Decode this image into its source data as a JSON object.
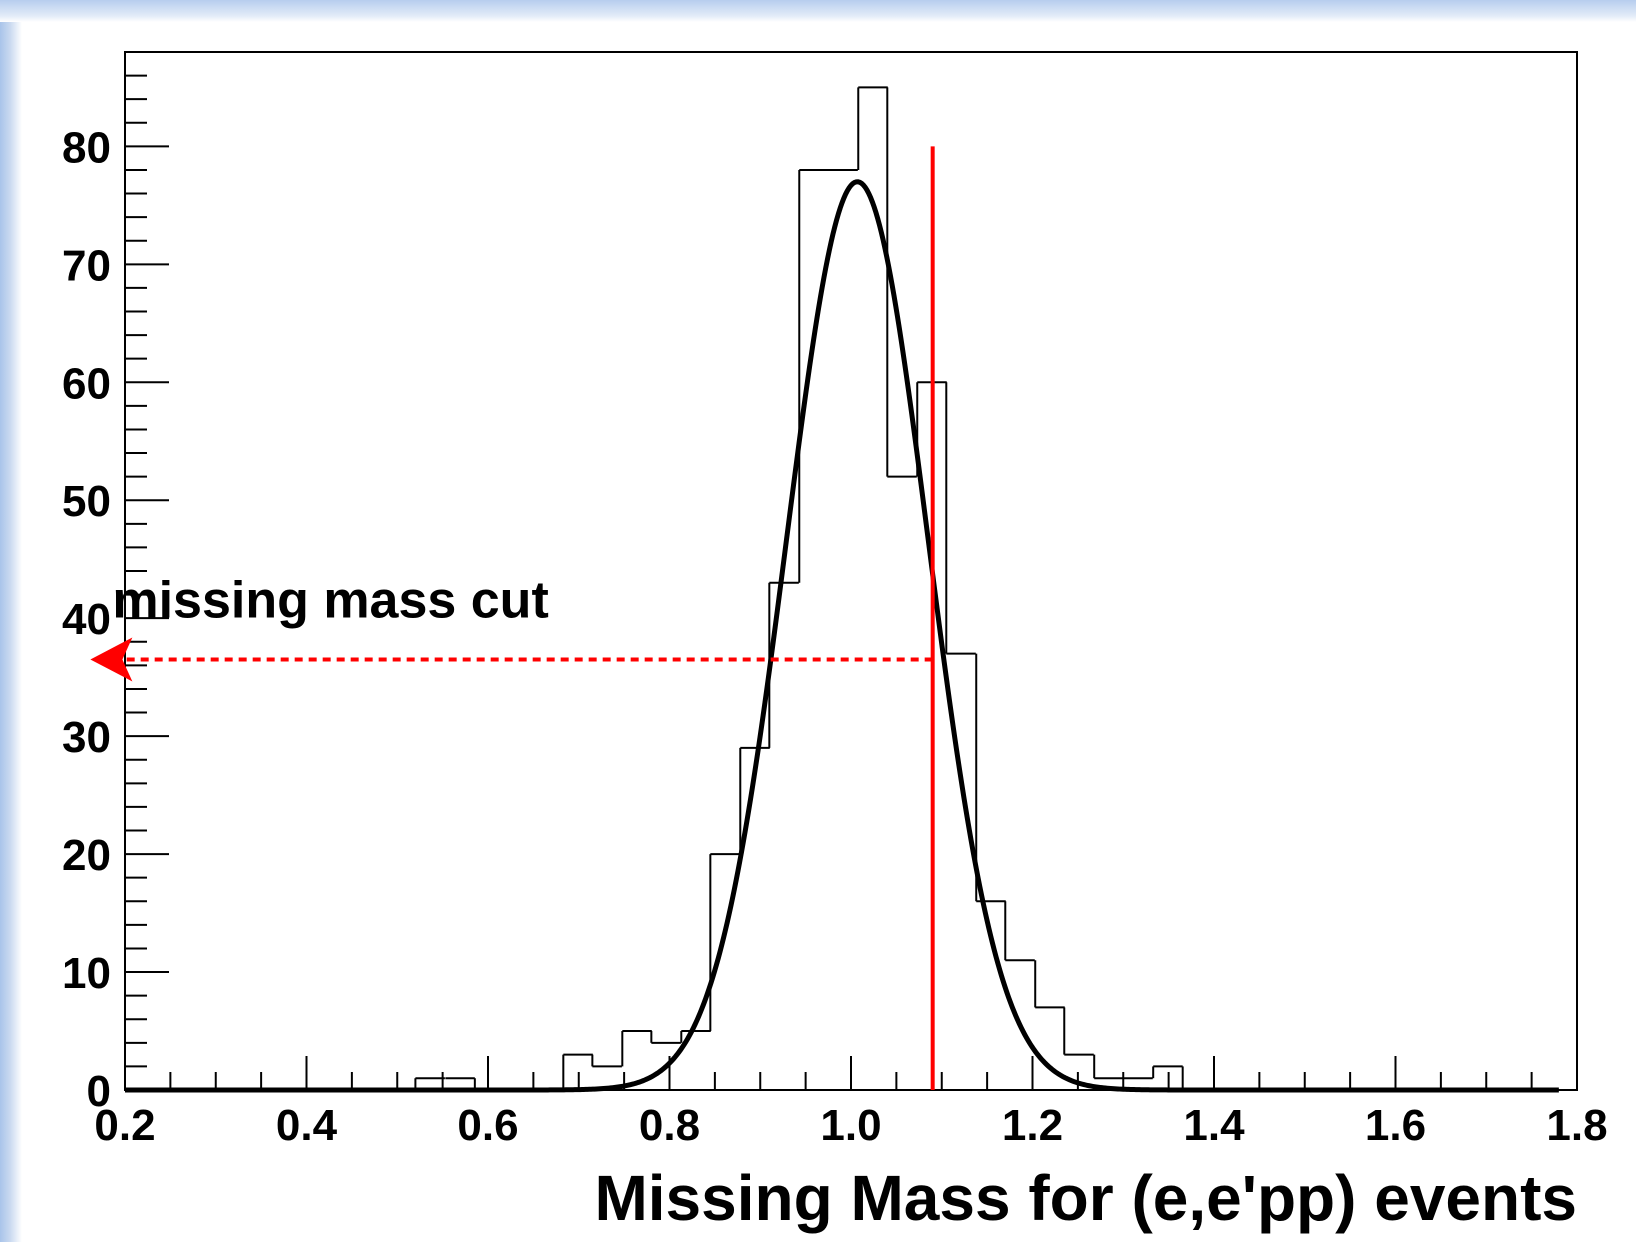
{
  "chart_data": {
    "type": "histogram",
    "xlabel": "Missing Mass for (e,e'pp) events",
    "ylabel": "",
    "xlim": [
      0.2,
      1.8
    ],
    "ylim": [
      0,
      88
    ],
    "x_ticks": [
      0.2,
      0.4,
      0.6,
      0.8,
      1.0,
      1.2,
      1.4,
      1.6,
      1.8
    ],
    "x_tick_labels": [
      "0.2",
      "0.4",
      "0.6",
      "0.8",
      "1.0",
      "1.2",
      "1.4",
      "1.6",
      "1.8"
    ],
    "y_ticks": [
      0,
      10,
      20,
      30,
      40,
      50,
      60,
      70,
      80
    ],
    "y_tick_labels": [
      "0",
      "10",
      "20",
      "30",
      "40",
      "50",
      "60",
      "70",
      "80"
    ],
    "bin_width": 0.0325,
    "bins": [
      {
        "x0": 0.52,
        "value": 1
      },
      {
        "x0": 0.553,
        "value": 1
      },
      {
        "x0": 0.683,
        "value": 3
      },
      {
        "x0": 0.715,
        "value": 2
      },
      {
        "x0": 0.748,
        "value": 5
      },
      {
        "x0": 0.78,
        "value": 4
      },
      {
        "x0": 0.813,
        "value": 5
      },
      {
        "x0": 0.845,
        "value": 20
      },
      {
        "x0": 0.878,
        "value": 29
      },
      {
        "x0": 0.91,
        "value": 43
      },
      {
        "x0": 0.943,
        "value": 78
      },
      {
        "x0": 0.975,
        "value": 78
      },
      {
        "x0": 1.008,
        "value": 85
      },
      {
        "x0": 1.04,
        "value": 52
      },
      {
        "x0": 1.073,
        "value": 60
      },
      {
        "x0": 1.105,
        "value": 37
      },
      {
        "x0": 1.138,
        "value": 16
      },
      {
        "x0": 1.17,
        "value": 11
      },
      {
        "x0": 1.203,
        "value": 7
      },
      {
        "x0": 1.235,
        "value": 3
      },
      {
        "x0": 1.268,
        "value": 1
      },
      {
        "x0": 1.3,
        "value": 1
      },
      {
        "x0": 1.333,
        "value": 2
      }
    ],
    "fit": {
      "type": "gaussian",
      "amplitude": 77,
      "mean": 1.007,
      "sigma": 0.078,
      "x_range": [
        0.2,
        1.78
      ]
    },
    "cut_line": {
      "x": 1.09,
      "y_top": 80,
      "color": "#ff0000"
    },
    "annotation": {
      "text": "missing mass cut",
      "arrow_y": 36.5,
      "arrow_from_x": 1.09,
      "arrow_to_x": 0.25,
      "color": "#ff0000"
    }
  }
}
